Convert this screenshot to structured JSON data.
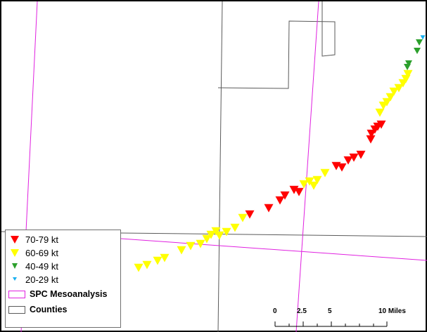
{
  "colors": {
    "county_line": "#5a5a5a",
    "spc_line": "#e020e0",
    "t70": "#ff0000",
    "t60": "#ffff00",
    "t40": "#2ca02c",
    "t20": "#1ab0f0"
  },
  "legend": {
    "items": [
      {
        "label": "70-79 kt",
        "icon": "red-triangle-icon"
      },
      {
        "label": "60-69 kt",
        "icon": "yellow-triangle-icon"
      },
      {
        "label": "40-49 kt",
        "icon": "green-triangle-icon"
      },
      {
        "label": "20-29 kt",
        "icon": "blue-triangle-icon"
      }
    ],
    "spc_label": "SPC Mesoanalysis",
    "counties_label": "Counties"
  },
  "scalebar": {
    "labels": [
      "0",
      "2.5",
      "5",
      "10 Miles"
    ]
  }
}
